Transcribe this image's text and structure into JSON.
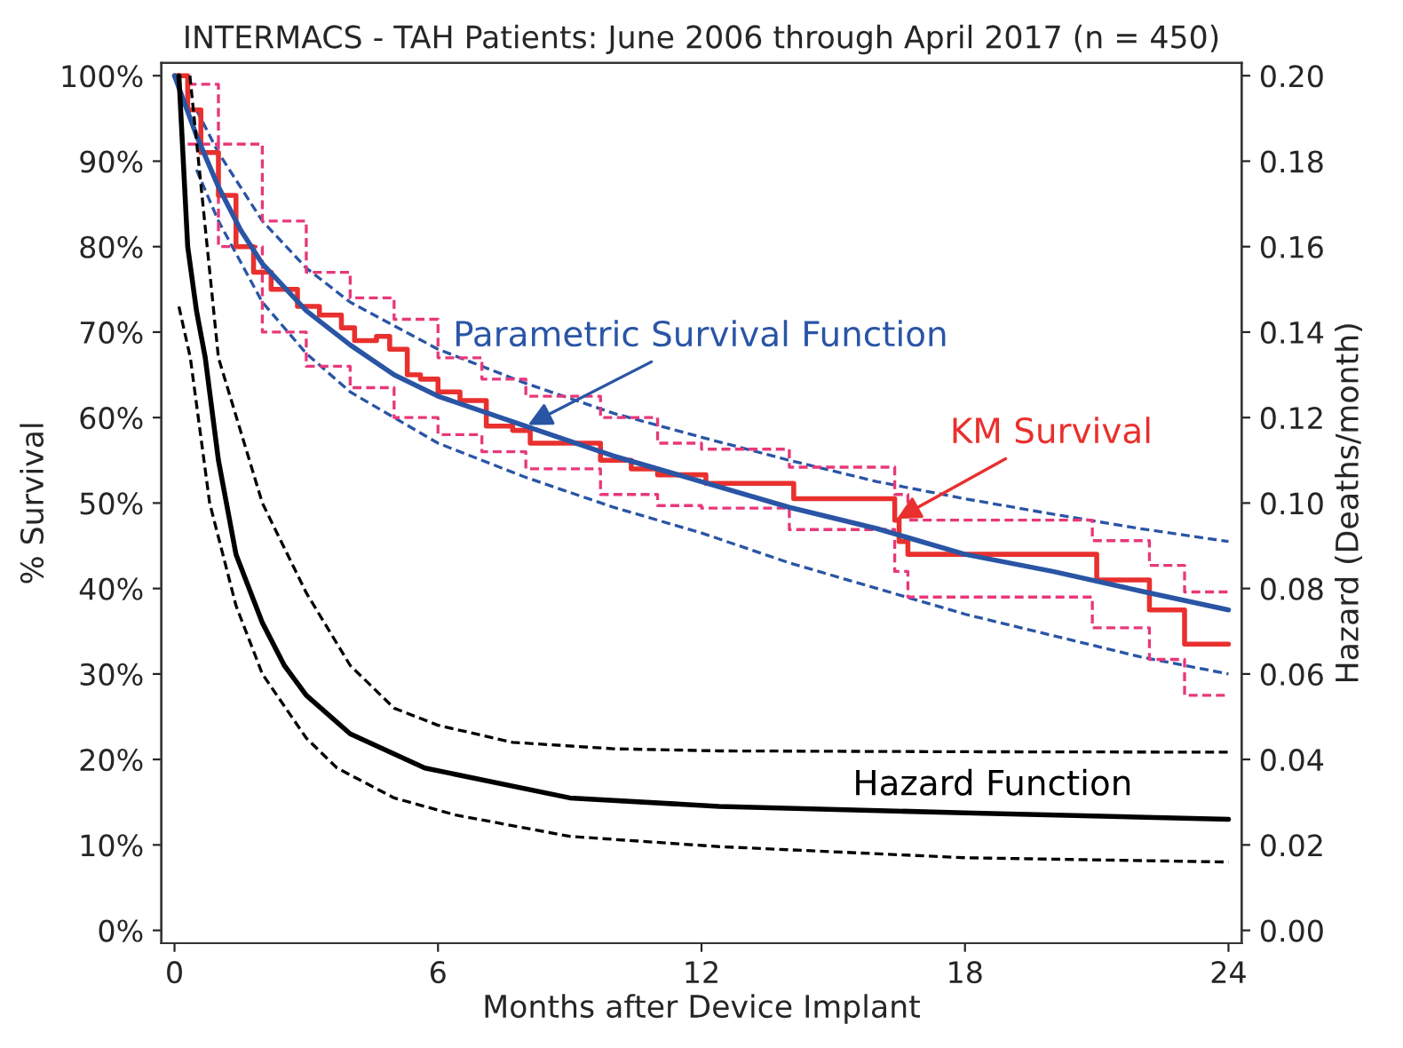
{
  "chart_data": {
    "type": "line",
    "title": "INTERMACS - TAH Patients: June 2006 through April 2017 (n = 450)",
    "xlabel": "Months after Device Implant",
    "ylabel": "% Survival",
    "y2label": "Hazard (Deaths/month)",
    "xlim": [
      -0.3,
      24.3
    ],
    "xticks": [
      0,
      6,
      12,
      18,
      24
    ],
    "ylim": [
      -1.5,
      101.5
    ],
    "yticks": [
      {
        "value": 0,
        "label": "0%"
      },
      {
        "value": 10,
        "label": "10%"
      },
      {
        "value": 20,
        "label": "20%"
      },
      {
        "value": 30,
        "label": "30%"
      },
      {
        "value": 40,
        "label": "40%"
      },
      {
        "value": 50,
        "label": "50%"
      },
      {
        "value": 60,
        "label": "60%"
      },
      {
        "value": 70,
        "label": "70%"
      },
      {
        "value": 80,
        "label": "80%"
      },
      {
        "value": 90,
        "label": "90%"
      },
      {
        "value": 100,
        "label": "100%"
      }
    ],
    "y2lim": [
      -0.003,
      0.203
    ],
    "y2ticks": [
      {
        "value": 0,
        "label": "0.00"
      },
      {
        "value": 0.02,
        "label": "0.02"
      },
      {
        "value": 0.04,
        "label": "0.04"
      },
      {
        "value": 0.06,
        "label": "0.06"
      },
      {
        "value": 0.08,
        "label": "0.08"
      },
      {
        "value": 0.1,
        "label": "0.10"
      },
      {
        "value": 0.12,
        "label": "0.12"
      },
      {
        "value": 0.14,
        "label": "0.14"
      },
      {
        "value": 0.16,
        "label": "0.16"
      },
      {
        "value": 0.18,
        "label": "0.18"
      },
      {
        "value": 0.2,
        "label": "0.20"
      }
    ],
    "grid": false,
    "legend": false,
    "series": [
      {
        "line_style": "dashed",
        "color": "#2a55a5",
        "x": [
          0.5,
          1,
          2,
          3,
          4,
          6,
          8,
          10,
          12,
          14,
          16,
          18,
          20,
          22,
          24
        ],
        "values": [
          96,
          91,
          83,
          77.5,
          73.5,
          68,
          64,
          60.5,
          57.7,
          55,
          52.5,
          50.5,
          48.7,
          47,
          45.5
        ]
      },
      {
        "line_style": "dashed",
        "color": "#2a55a5",
        "x": [
          0.5,
          1,
          2,
          3,
          4,
          6,
          8,
          10,
          12,
          14,
          16,
          18,
          20,
          22,
          24
        ],
        "values": [
          89,
          83,
          73.5,
          67.5,
          63,
          57,
          53,
          49.5,
          46.5,
          43,
          40,
          37,
          34.5,
          32,
          30
        ]
      },
      {
        "type": "step",
        "line_style": "dashed",
        "color": "#e8387a",
        "x": [
          0.3,
          1,
          2,
          3,
          4,
          5,
          6,
          7,
          8,
          9.7,
          11,
          12,
          14,
          16.4,
          16.7,
          20.9,
          22.2,
          23,
          24
        ],
        "values": [
          99,
          92,
          83,
          77,
          74,
          71.5,
          67,
          64.5,
          62.5,
          60,
          57,
          56.3,
          54.2,
          51,
          48,
          45.6,
          42.7,
          39.6,
          39.6
        ]
      },
      {
        "type": "step",
        "line_style": "dashed",
        "color": "#e8387a",
        "x": [
          0.3,
          1,
          2,
          3,
          4,
          5,
          6,
          7,
          8,
          9.7,
          11,
          12,
          14,
          16.4,
          16.7,
          20.9,
          22.2,
          23,
          24
        ],
        "values": [
          92,
          80,
          70,
          66,
          63.5,
          60,
          58,
          56,
          54,
          51,
          49.7,
          49.4,
          46.9,
          42,
          39,
          35.4,
          31.7,
          27.5,
          27.5
        ]
      },
      {
        "type": "step",
        "name": "KM Survival",
        "line_style": "solid",
        "color": "#e8302e",
        "x": [
          0,
          0.3,
          0.6,
          1,
          1.4,
          1.8,
          2.2,
          2.8,
          3.3,
          3.8,
          4.1,
          4.6,
          4.9,
          5.3,
          5.6,
          6,
          6.5,
          7.1,
          7.7,
          8.1,
          9.7,
          10.4,
          11,
          12.1,
          14.1,
          16.4,
          16.5,
          16.7,
          21,
          22.2,
          23,
          24
        ],
        "values": [
          100,
          96,
          91,
          86,
          80,
          77,
          75,
          73,
          72,
          70.5,
          69,
          69.5,
          68,
          65,
          64.5,
          63,
          62,
          59,
          58.5,
          57,
          55,
          54,
          53.3,
          52.3,
          50.5,
          48,
          45.5,
          44,
          41,
          37.5,
          33.5,
          33.5
        ]
      },
      {
        "name": "Parametric Survival Function",
        "line_style": "solid",
        "color": "#2a55a5",
        "x": [
          0,
          0.5,
          1,
          1.5,
          2,
          3,
          4,
          5,
          6,
          8,
          10,
          12,
          14,
          16,
          18,
          20,
          22,
          24
        ],
        "values": [
          100,
          93,
          87,
          82,
          78,
          72.5,
          68.5,
          65,
          62.5,
          59,
          55.5,
          52.5,
          49.5,
          47,
          44,
          42,
          39.7,
          37.5
        ]
      },
      {
        "axis": "y2",
        "line_style": "dashed",
        "color": "#000000",
        "x": [
          0.35,
          1,
          2,
          3,
          4,
          5,
          6,
          7.7,
          10,
          12.4,
          18,
          24
        ],
        "values": [
          0.2,
          0.134,
          0.1,
          0.079,
          0.062,
          0.052,
          0.048,
          0.044,
          0.0425,
          0.042,
          0.0418,
          0.0417
        ]
      },
      {
        "axis": "y2",
        "line_style": "dashed",
        "color": "#000000",
        "x": [
          0.1,
          0.36,
          0.8,
          1.4,
          2,
          3,
          3.7,
          5,
          6.4,
          9,
          12.4,
          18,
          24
        ],
        "values": [
          0.146,
          0.134,
          0.1,
          0.076,
          0.06,
          0.045,
          0.038,
          0.031,
          0.027,
          0.022,
          0.0196,
          0.017,
          0.016
        ]
      },
      {
        "name": "Hazard Function",
        "axis": "y2",
        "line_style": "solid",
        "color": "#000000",
        "x": [
          0.1,
          0.3,
          0.5,
          0.7,
          1,
          1.4,
          2,
          2.5,
          3,
          4,
          5.7,
          9,
          12.4,
          18,
          24
        ],
        "values": [
          0.2,
          0.16,
          0.145,
          0.134,
          0.11,
          0.088,
          0.072,
          0.062,
          0.055,
          0.046,
          0.038,
          0.031,
          0.029,
          0.0275,
          0.026
        ]
      }
    ]
  }
}
